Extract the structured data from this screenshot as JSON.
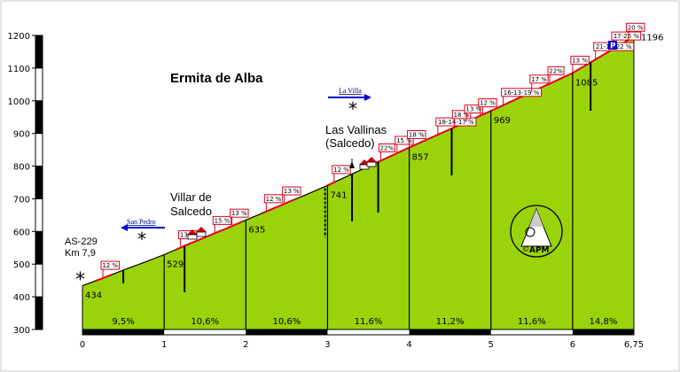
{
  "chart_data": {
    "type": "area",
    "title": "Ermita de Alba",
    "xlim": [
      0,
      6.75
    ],
    "ylim": [
      300,
      1200
    ],
    "x_ticks": [
      "0",
      "1",
      "2",
      "3",
      "4",
      "5",
      "6",
      "6,75"
    ],
    "y_ticks": [
      "300",
      "400",
      "500",
      "600",
      "700",
      "800",
      "900",
      "1000",
      "1100",
      "1200"
    ],
    "profile": [
      {
        "x": 0,
        "y": 434
      },
      {
        "x": 0.25,
        "y": 457
      },
      {
        "x": 0.5,
        "y": 482
      },
      {
        "x": 0.75,
        "y": 505
      },
      {
        "x": 1,
        "y": 529
      },
      {
        "x": 1.25,
        "y": 556
      },
      {
        "x": 1.5,
        "y": 582
      },
      {
        "x": 1.75,
        "y": 608
      },
      {
        "x": 2,
        "y": 635
      },
      {
        "x": 2.25,
        "y": 661
      },
      {
        "x": 2.5,
        "y": 688
      },
      {
        "x": 2.75,
        "y": 714
      },
      {
        "x": 3,
        "y": 741
      },
      {
        "x": 3.25,
        "y": 770
      },
      {
        "x": 3.5,
        "y": 799
      },
      {
        "x": 3.75,
        "y": 828
      },
      {
        "x": 4,
        "y": 857
      },
      {
        "x": 4.25,
        "y": 885
      },
      {
        "x": 4.5,
        "y": 913
      },
      {
        "x": 4.75,
        "y": 941
      },
      {
        "x": 5,
        "y": 969
      },
      {
        "x": 5.25,
        "y": 998
      },
      {
        "x": 5.5,
        "y": 1027
      },
      {
        "x": 5.75,
        "y": 1056
      },
      {
        "x": 6,
        "y": 1085
      },
      {
        "x": 6.25,
        "y": 1122
      },
      {
        "x": 6.5,
        "y": 1159
      },
      {
        "x": 6.75,
        "y": 1196
      }
    ],
    "km_markers": [
      {
        "x": 0,
        "elevation": "434"
      },
      {
        "x": 1,
        "elevation": "529"
      },
      {
        "x": 2,
        "elevation": "635"
      },
      {
        "x": 3,
        "elevation": "741"
      },
      {
        "x": 4,
        "elevation": "857"
      },
      {
        "x": 5,
        "elevation": "969"
      },
      {
        "x": 6,
        "elevation": "1085"
      },
      {
        "x": 6.75,
        "elevation": "1196"
      }
    ],
    "segment_gradients": [
      "9,5%",
      "10,6%",
      "10,6%",
      "11,6%",
      "11,2%",
      "11,6%",
      "14,8%"
    ],
    "grade_flags": [
      {
        "x": 0.25,
        "label": "12 %"
      },
      {
        "x": 1.2,
        "label": "13 %"
      },
      {
        "x": 1.62,
        "label": "15 %"
      },
      {
        "x": 1.83,
        "label": "13 %"
      },
      {
        "x": 2.25,
        "label": "12 %"
      },
      {
        "x": 2.47,
        "label": "13 %"
      },
      {
        "x": 3.08,
        "label": "12 %"
      },
      {
        "x": 3.65,
        "label": "22%"
      },
      {
        "x": 3.85,
        "label": "15 %"
      },
      {
        "x": 4.0,
        "label": "18 %"
      },
      {
        "x": 4.35,
        "label": "18-14-17 %"
      },
      {
        "x": 4.55,
        "label": "18 %"
      },
      {
        "x": 4.7,
        "label": "13 %"
      },
      {
        "x": 4.87,
        "label": "12 %"
      },
      {
        "x": 5.15,
        "label": "16-13-19 %"
      },
      {
        "x": 5.5,
        "label": "17 %"
      },
      {
        "x": 5.72,
        "label": "22%"
      },
      {
        "x": 6.0,
        "label": "13 %"
      },
      {
        "x": 6.28,
        "label": "21-18-22 %"
      },
      {
        "x": 6.5,
        "label": "17-26 %"
      },
      {
        "x": 6.68,
        "label": "20 %"
      }
    ],
    "places": {
      "start_road": "AS-229",
      "start_km": "Km 7,9",
      "villar_1": "Villar de",
      "villar_2": "Salcedo",
      "vallinas_1": "Las Vallinas",
      "vallinas_2": "(Salcedo)"
    },
    "detours": {
      "san_pedro": "San Pedro",
      "la_villa": "La Villa"
    },
    "logo_text": "APM",
    "parking_label": "P",
    "colors": {
      "fill": "#9bd30a",
      "profile": "#000000",
      "steep": "#e0001a",
      "arrow": "#0000cc"
    }
  }
}
